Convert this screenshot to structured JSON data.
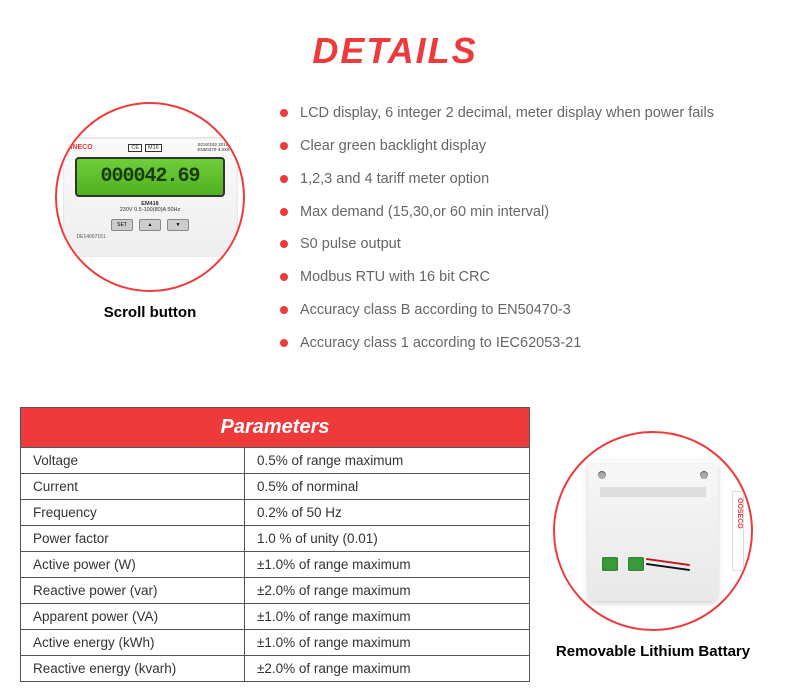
{
  "title": "DETAILS",
  "colors": {
    "accent": "#ee3a3a",
    "text_muted": "#666666",
    "border": "#555555",
    "lcd_bg": "#5bc02a"
  },
  "product_meter": {
    "brand": "INECO",
    "badges": [
      "CE",
      "M16"
    ],
    "cert_lines": [
      "SGS0192  2016",
      "EN50470-3.3X6"
    ],
    "lcd_value": "000042.69",
    "model": "EM418",
    "spec_line": "230V 0.5-100(80)A  50Hz",
    "buttons": [
      "SET",
      "▲",
      "▼"
    ],
    "serial": "DE14007151",
    "caption": "Scroll button"
  },
  "features": [
    "LCD display, 6 integer 2 decimal, meter display when power fails",
    "Clear green backlight display",
    "1,2,3 and 4 tariff meter option",
    "Max demand (15,30,or 60 min interval)",
    "S0 pulse output",
    "Modbus RTU with 16 bit CRC",
    "Accuracy class B according to EN50470-3",
    "Accuracy class 1 according to IEC62053-21"
  ],
  "parameters_table": {
    "header": "Parameters",
    "rows": [
      [
        "Voltage",
        "0.5% of range maximum"
      ],
      [
        "Current",
        "0.5% of norminal"
      ],
      [
        "Frequency",
        "0.2% of 50 Hz"
      ],
      [
        "Power factor",
        "1.0 % of unity (0.01)"
      ],
      [
        "Active power (W)",
        "±1.0% of range maximum"
      ],
      [
        "Reactive power (var)",
        "±2.0% of range maximum"
      ],
      [
        "Apparent power (VA)",
        "±1.0% of range maximum"
      ],
      [
        "Active energy (kWh)",
        "±1.0% of range maximum"
      ],
      [
        "Reactive energy (kvarh)",
        "±2.0% of range maximum"
      ]
    ]
  },
  "battery": {
    "caption": "Removable Lithium Battary",
    "side_brand": "OOSECO"
  }
}
